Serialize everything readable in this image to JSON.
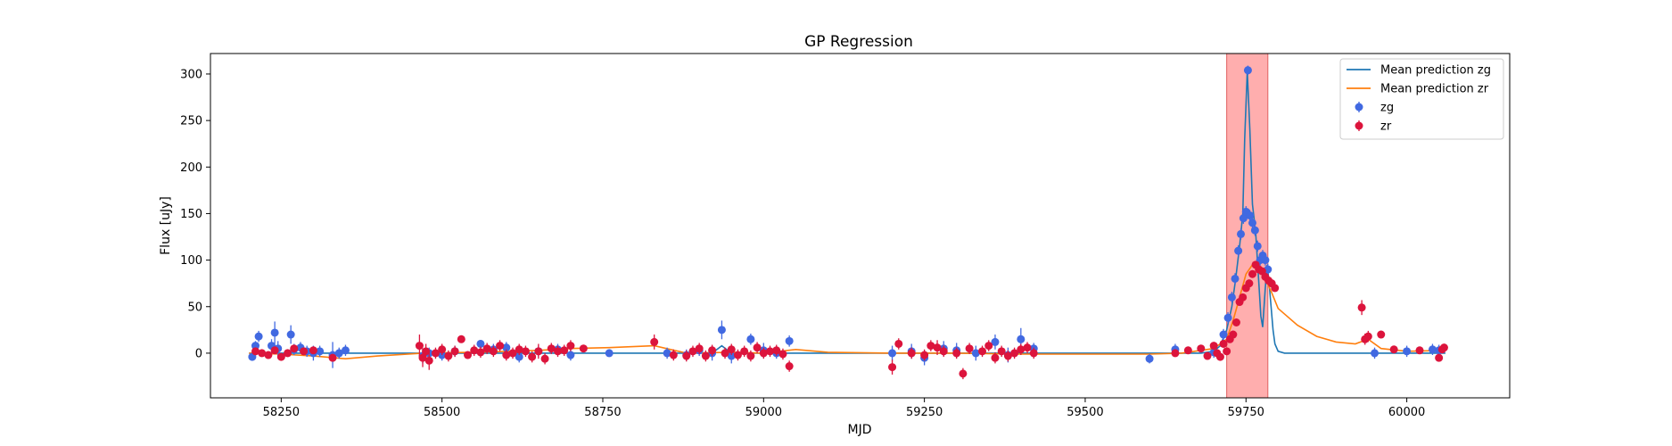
{
  "chart_data": {
    "type": "scatter",
    "title": "GP Regression",
    "xlabel": "MJD",
    "ylabel": "Flux [uJy]",
    "xlim": [
      58140,
      60160
    ],
    "ylim": [
      -48,
      322
    ],
    "xticks": [
      58250,
      58500,
      58750,
      59000,
      59250,
      59500,
      59750,
      60000
    ],
    "yticks": [
      0,
      50,
      100,
      150,
      200,
      250,
      300
    ],
    "grid": false,
    "legend_position": "top-right",
    "highlight_region": {
      "x": [
        59720,
        59784
      ],
      "color": "#ff8c8c"
    },
    "series": [
      {
        "name": "Mean prediction zg",
        "kind": "line",
        "color": "#1f77b4",
        "x": [
          58200,
          58350,
          58450,
          58500,
          58550,
          58650,
          58750,
          58850,
          58920,
          58935,
          58950,
          59000,
          59100,
          59200,
          59300,
          59400,
          59500,
          59600,
          59650,
          59680,
          59700,
          59710,
          59720,
          59728,
          59734,
          59740,
          59745,
          59748,
          59752,
          59756,
          59760,
          59765,
          59770,
          59773,
          59776,
          59780,
          59783,
          59786,
          59789,
          59792,
          59795,
          59800,
          59810,
          59900,
          60000,
          60060
        ],
        "y": [
          0,
          0,
          0,
          0,
          0,
          0,
          0,
          0,
          0,
          8,
          0,
          0,
          0,
          0,
          0,
          0,
          0,
          0,
          0,
          0,
          2,
          8,
          25,
          50,
          80,
          115,
          150,
          230,
          303,
          240,
          160,
          130,
          75,
          40,
          28,
          70,
          95,
          75,
          50,
          25,
          10,
          2,
          0,
          0,
          0,
          0
        ]
      },
      {
        "name": "Mean prediction zr",
        "kind": "line",
        "color": "#ff7f0e",
        "x": [
          58200,
          58250,
          58300,
          58350,
          58400,
          58470,
          58550,
          58650,
          58700,
          58760,
          58830,
          58880,
          58950,
          59000,
          59050,
          59100,
          59200,
          59300,
          59400,
          59500,
          59600,
          59650,
          59700,
          59720,
          59730,
          59740,
          59750,
          59760,
          59770,
          59780,
          59790,
          59800,
          59830,
          59860,
          59890,
          59920,
          59940,
          59960,
          60000,
          60060
        ],
        "y": [
          0,
          -1,
          -3,
          -6,
          -3,
          0,
          1,
          3,
          5,
          6,
          8,
          0,
          1,
          0,
          4,
          1,
          0,
          0,
          -1,
          -1,
          -1,
          0,
          5,
          15,
          35,
          60,
          85,
          95,
          90,
          80,
          65,
          48,
          30,
          18,
          12,
          10,
          15,
          5,
          2,
          3
        ]
      },
      {
        "name": "zg",
        "kind": "errorbar",
        "color": "#4169e1",
        "x": [
          58205,
          58210,
          58215,
          58235,
          58240,
          58245,
          58265,
          58270,
          58280,
          58290,
          58300,
          58310,
          58330,
          58340,
          58350,
          58470,
          58480,
          58500,
          58520,
          58560,
          58580,
          58600,
          58620,
          58650,
          58680,
          58700,
          58760,
          58850,
          58880,
          58900,
          58920,
          58935,
          58950,
          58980,
          59000,
          59020,
          59040,
          59200,
          59230,
          59250,
          59280,
          59300,
          59330,
          59360,
          59380,
          59400,
          59420,
          59600,
          59640,
          59700,
          59715,
          59722,
          59728,
          59733,
          59738,
          59742,
          59746,
          59750,
          59753,
          59756,
          59760,
          59764,
          59768,
          59772,
          59776,
          59780,
          59784,
          59950,
          60000,
          60040,
          60050
        ],
        "y": [
          -4,
          8,
          18,
          8,
          22,
          5,
          20,
          4,
          6,
          2,
          0,
          2,
          -2,
          0,
          3,
          -3,
          0,
          -2,
          2,
          10,
          4,
          6,
          -4,
          2,
          4,
          -2,
          0,
          0,
          -2,
          3,
          0,
          25,
          -3,
          15,
          3,
          0,
          13,
          0,
          2,
          -5,
          5,
          3,
          0,
          12,
          -2,
          15,
          5,
          -6,
          4,
          1,
          20,
          38,
          60,
          80,
          110,
          128,
          145,
          152,
          304,
          148,
          140,
          132,
          115,
          100,
          105,
          100,
          90,
          0,
          2,
          4,
          3
        ],
        "yerr": [
          4,
          5,
          6,
          7,
          12,
          8,
          10,
          6,
          6,
          6,
          8,
          6,
          14,
          6,
          6,
          8,
          6,
          6,
          6,
          4,
          6,
          6,
          6,
          6,
          6,
          6,
          4,
          6,
          6,
          6,
          8,
          10,
          8,
          6,
          8,
          6,
          6,
          8,
          8,
          8,
          8,
          8,
          8,
          8,
          8,
          12,
          6,
          5,
          6,
          6,
          6,
          6,
          6,
          6,
          6,
          6,
          6,
          6,
          5,
          6,
          6,
          6,
          6,
          6,
          6,
          6,
          6,
          6,
          6,
          6,
          6
        ]
      },
      {
        "name": "zr",
        "kind": "errorbar",
        "color": "#dc143c",
        "x": [
          58210,
          58220,
          58230,
          58240,
          58250,
          58260,
          58270,
          58285,
          58300,
          58330,
          58465,
          58470,
          58475,
          58480,
          58490,
          58500,
          58510,
          58520,
          58530,
          58540,
          58550,
          58560,
          58570,
          58580,
          58590,
          58600,
          58610,
          58620,
          58630,
          58640,
          58650,
          58660,
          58670,
          58680,
          58690,
          58700,
          58720,
          58830,
          58860,
          58880,
          58890,
          58900,
          58910,
          58920,
          58940,
          58950,
          58960,
          58970,
          58980,
          58990,
          59000,
          59010,
          59020,
          59030,
          59040,
          59200,
          59210,
          59230,
          59250,
          59260,
          59270,
          59280,
          59300,
          59310,
          59320,
          59340,
          59350,
          59360,
          59370,
          59380,
          59390,
          59400,
          59410,
          59420,
          59640,
          59660,
          59680,
          59690,
          59700,
          59705,
          59710,
          59715,
          59720,
          59725,
          59730,
          59735,
          59740,
          59745,
          59750,
          59755,
          59760,
          59765,
          59770,
          59775,
          59780,
          59785,
          59790,
          59795,
          59930,
          59935,
          59940,
          59960,
          59980,
          60020,
          60050,
          60055,
          60058
        ],
        "y": [
          2,
          0,
          -2,
          3,
          -4,
          0,
          5,
          2,
          3,
          -5,
          8,
          -5,
          2,
          -8,
          0,
          4,
          -3,
          2,
          15,
          -2,
          3,
          1,
          5,
          2,
          8,
          -2,
          0,
          4,
          2,
          -4,
          2,
          -6,
          5,
          2,
          3,
          8,
          5,
          12,
          -2,
          -3,
          2,
          5,
          -3,
          3,
          0,
          4,
          -2,
          2,
          -3,
          6,
          0,
          2,
          3,
          -1,
          -14,
          -15,
          10,
          0,
          -2,
          8,
          6,
          2,
          0,
          -22,
          5,
          2,
          8,
          -5,
          2,
          -3,
          0,
          4,
          6,
          0,
          0,
          3,
          5,
          -3,
          8,
          0,
          -4,
          10,
          2,
          15,
          20,
          33,
          55,
          60,
          70,
          75,
          85,
          95,
          90,
          88,
          82,
          78,
          75,
          70,
          49,
          15,
          18,
          20,
          4,
          3,
          -5,
          4,
          6
        ],
        "yerr": [
          4,
          4,
          4,
          4,
          4,
          4,
          4,
          4,
          4,
          4,
          12,
          10,
          8,
          10,
          6,
          6,
          6,
          6,
          4,
          4,
          6,
          6,
          6,
          6,
          6,
          6,
          6,
          6,
          6,
          6,
          8,
          6,
          6,
          6,
          6,
          6,
          4,
          8,
          6,
          6,
          6,
          6,
          6,
          6,
          6,
          6,
          6,
          6,
          6,
          6,
          6,
          6,
          6,
          6,
          6,
          8,
          6,
          6,
          6,
          6,
          8,
          6,
          6,
          6,
          6,
          6,
          6,
          6,
          6,
          6,
          6,
          6,
          6,
          6,
          4,
          4,
          4,
          4,
          4,
          4,
          4,
          4,
          4,
          4,
          4,
          4,
          4,
          4,
          4,
          4,
          4,
          4,
          4,
          4,
          4,
          4,
          4,
          4,
          8,
          6,
          6,
          4,
          4,
          4,
          4,
          4,
          4
        ]
      }
    ]
  }
}
